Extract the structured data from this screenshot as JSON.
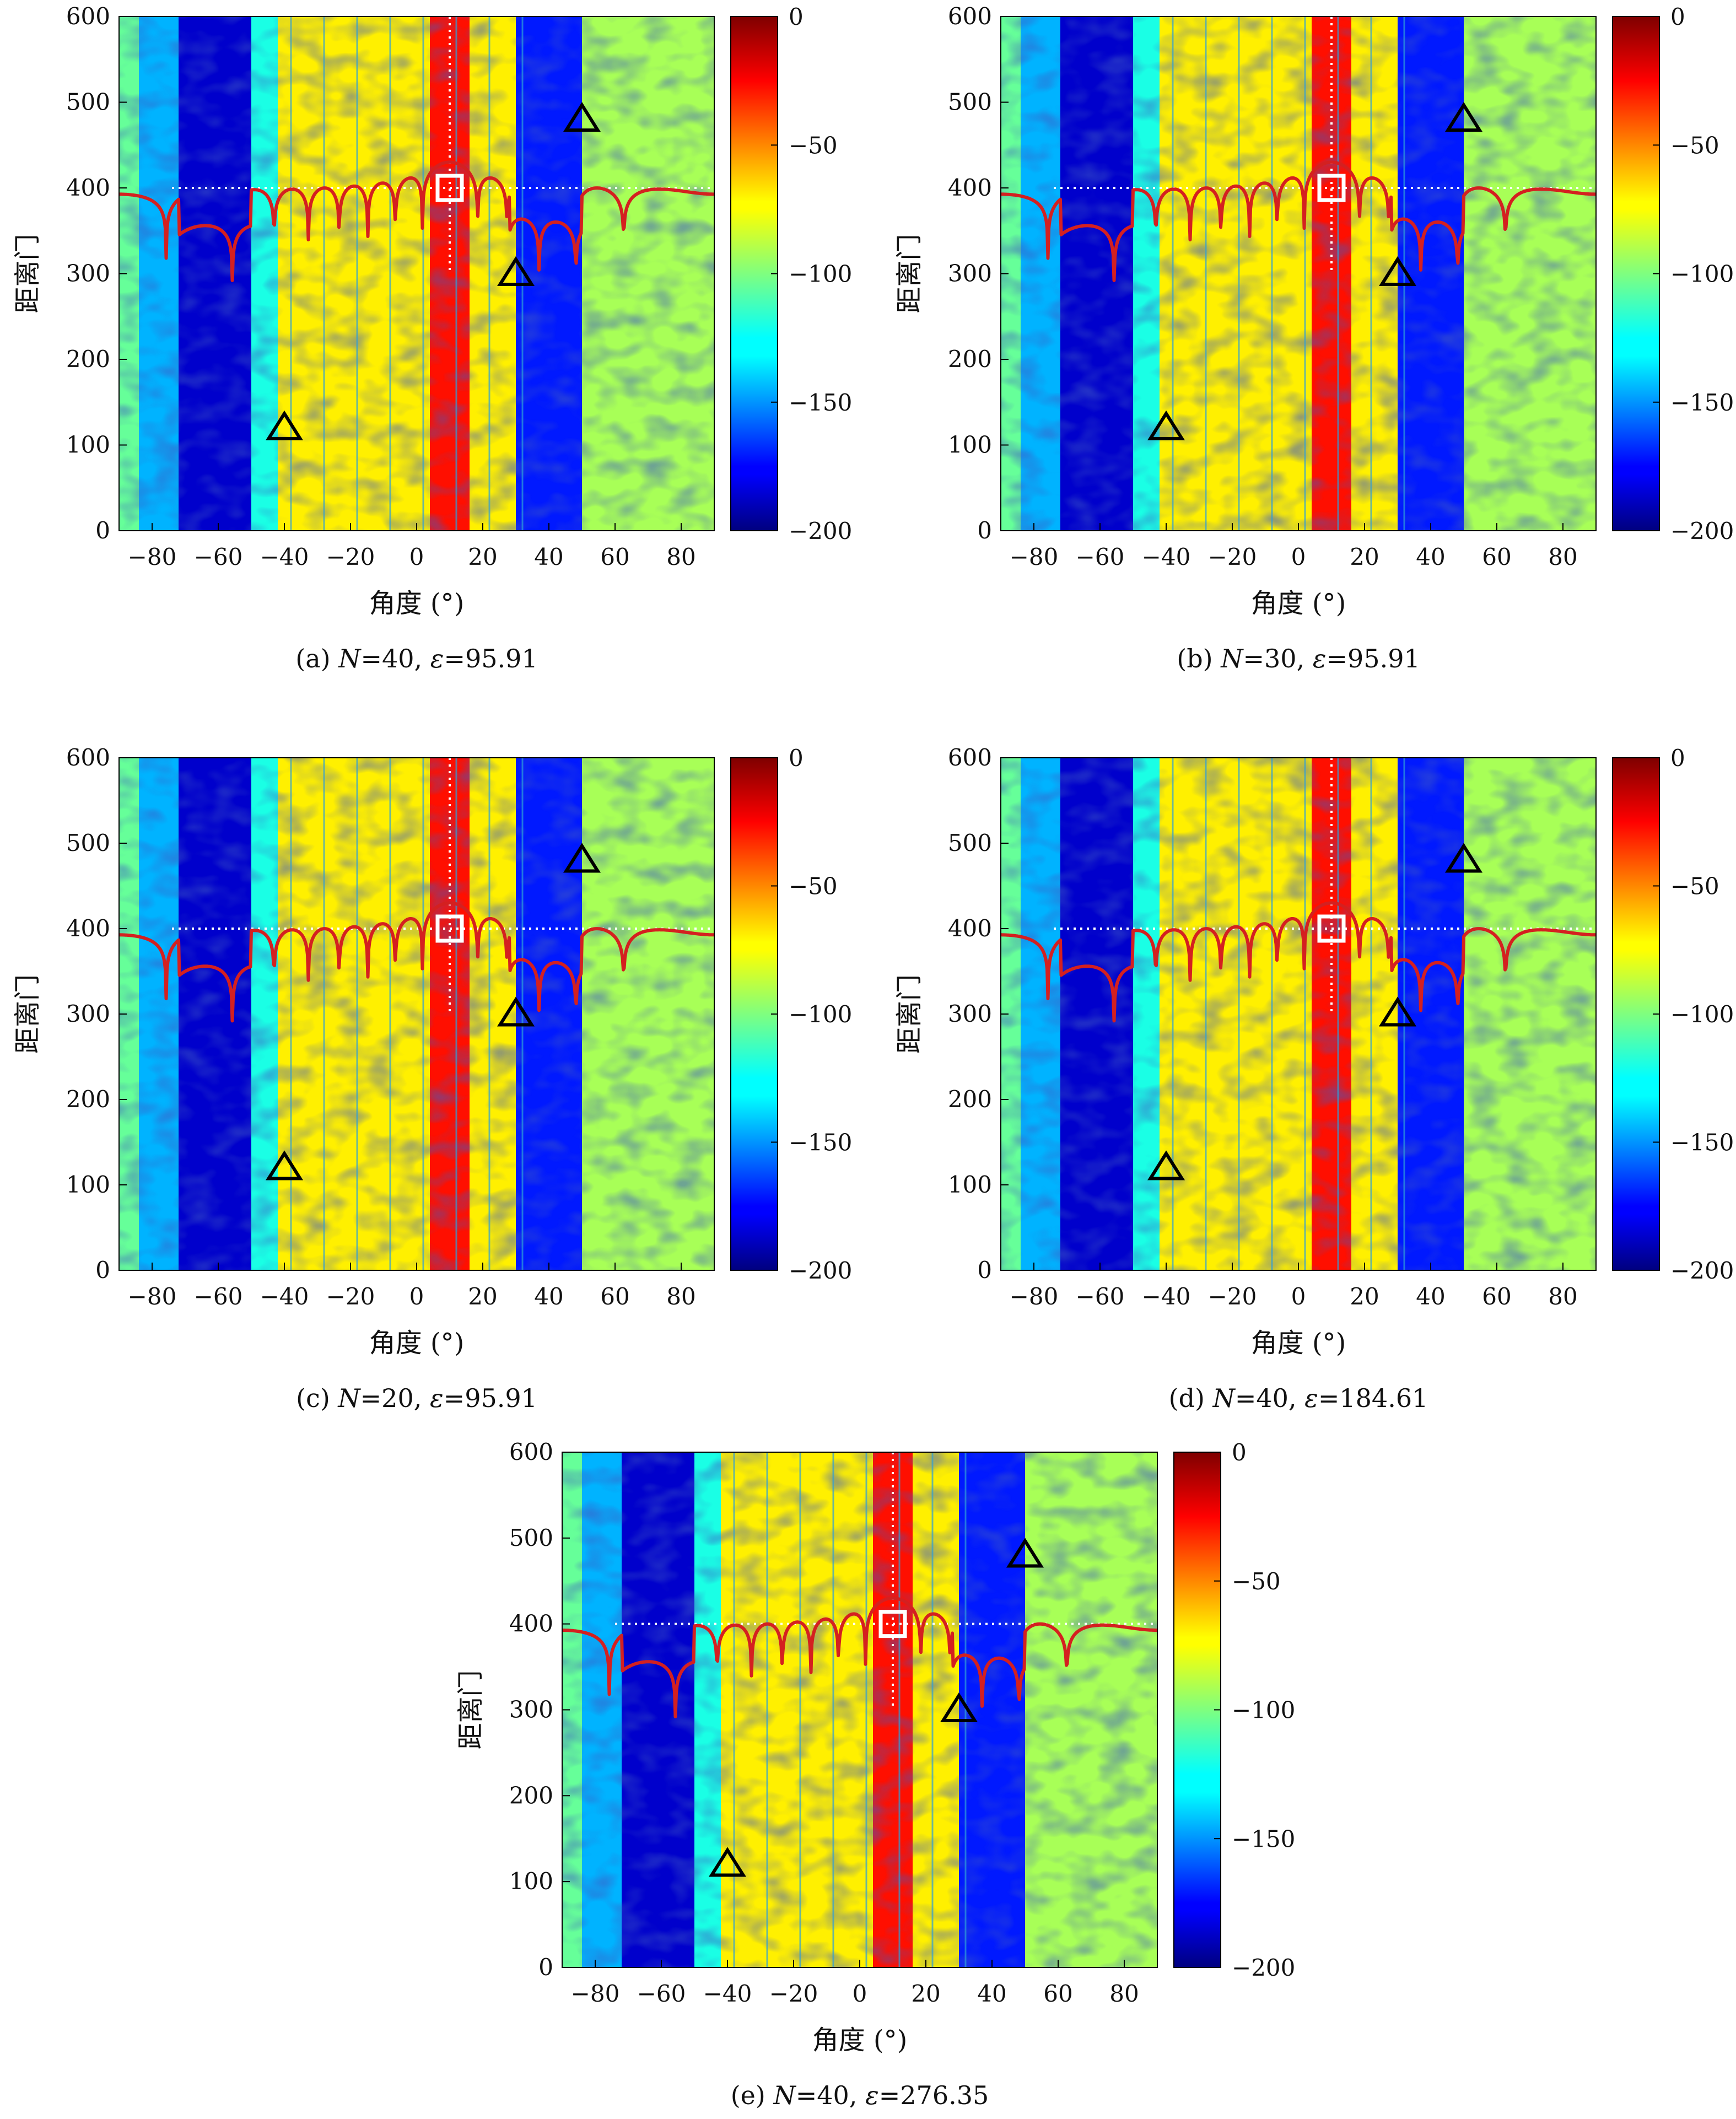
{
  "figure_labels": {
    "xlabel": "角度 (°)",
    "ylabel": "距离门"
  },
  "chart_data": [
    {
      "type": "heatmap",
      "caption": {
        "prefix": "(a) ",
        "n_sym": "N",
        "n_val": "=40, ",
        "eps_sym": "ε",
        "eps_val": "=95.91"
      },
      "xlabel": "角度 (°)",
      "ylabel": "距离门",
      "xlim": [
        -90,
        90
      ],
      "ylim": [
        0,
        600
      ],
      "xticks": [
        -80,
        -60,
        -40,
        -20,
        0,
        20,
        40,
        60,
        80
      ],
      "yticks": [
        0,
        100,
        200,
        300,
        400,
        500,
        600
      ],
      "colorbar": {
        "range": [
          -200,
          0
        ],
        "ticks": [
          0,
          -50,
          -100,
          -150,
          -200
        ],
        "tick_labels": [
          "0",
          "−50",
          "−100",
          "−150",
          "−200"
        ],
        "colormap": "jet"
      },
      "target": {
        "angle": 10,
        "range": 400
      },
      "jammer_markers": [
        {
          "angle": -40,
          "range": 120
        },
        {
          "angle": 30,
          "range": 300
        },
        {
          "angle": 50,
          "range": 480
        }
      ],
      "notch_region": [
        -70,
        -50
      ],
      "notch_region_2": [
        30,
        50
      ],
      "pattern_overlay": true
    },
    {
      "type": "heatmap",
      "caption": {
        "prefix": "(b) ",
        "n_sym": "N",
        "n_val": "=30, ",
        "eps_sym": "ε",
        "eps_val": "=95.91"
      },
      "xlabel": "角度 (°)",
      "ylabel": "距离门",
      "xlim": [
        -90,
        90
      ],
      "ylim": [
        0,
        600
      ],
      "xticks": [
        -80,
        -60,
        -40,
        -20,
        0,
        20,
        40,
        60,
        80
      ],
      "yticks": [
        0,
        100,
        200,
        300,
        400,
        500,
        600
      ],
      "colorbar": {
        "range": [
          -200,
          0
        ],
        "ticks": [
          0,
          -50,
          -100,
          -150,
          -200
        ],
        "tick_labels": [
          "0",
          "−50",
          "−100",
          "−150",
          "−200"
        ],
        "colormap": "jet"
      },
      "target": {
        "angle": 10,
        "range": 400
      },
      "jammer_markers": [
        {
          "angle": -40,
          "range": 120
        },
        {
          "angle": 30,
          "range": 300
        },
        {
          "angle": 50,
          "range": 480
        }
      ],
      "notch_region": [
        -70,
        -50
      ],
      "notch_region_2": [
        30,
        50
      ],
      "pattern_overlay": true
    },
    {
      "type": "heatmap",
      "caption": {
        "prefix": "(c) ",
        "n_sym": "N",
        "n_val": "=20, ",
        "eps_sym": "ε",
        "eps_val": "=95.91"
      },
      "xlabel": "角度 (°)",
      "ylabel": "距离门",
      "xlim": [
        -90,
        90
      ],
      "ylim": [
        0,
        600
      ],
      "xticks": [
        -80,
        -60,
        -40,
        -20,
        0,
        20,
        40,
        60,
        80
      ],
      "yticks": [
        0,
        100,
        200,
        300,
        400,
        500,
        600
      ],
      "colorbar": {
        "range": [
          -200,
          0
        ],
        "ticks": [
          0,
          -50,
          -100,
          -150,
          -200
        ],
        "tick_labels": [
          "0",
          "−50",
          "−100",
          "−150",
          "−200"
        ],
        "colormap": "jet"
      },
      "target": {
        "angle": 10,
        "range": 400
      },
      "jammer_markers": [
        {
          "angle": -40,
          "range": 120
        },
        {
          "angle": 30,
          "range": 300
        },
        {
          "angle": 50,
          "range": 480
        }
      ],
      "notch_region": [
        -70,
        -50
      ],
      "notch_region_2": [
        30,
        50
      ],
      "pattern_overlay": true
    },
    {
      "type": "heatmap",
      "caption": {
        "prefix": "(d) ",
        "n_sym": "N",
        "n_val": "=40, ",
        "eps_sym": "ε",
        "eps_val": "=184.61"
      },
      "xlabel": "角度 (°)",
      "ylabel": "距离门",
      "xlim": [
        -90,
        90
      ],
      "ylim": [
        0,
        600
      ],
      "xticks": [
        -80,
        -60,
        -40,
        -20,
        0,
        20,
        40,
        60,
        80
      ],
      "yticks": [
        0,
        100,
        200,
        300,
        400,
        500,
        600
      ],
      "colorbar": {
        "range": [
          -200,
          0
        ],
        "ticks": [
          0,
          -50,
          -100,
          -150,
          -200
        ],
        "tick_labels": [
          "0",
          "−50",
          "−100",
          "−150",
          "−200"
        ],
        "colormap": "jet"
      },
      "target": {
        "angle": 10,
        "range": 400
      },
      "jammer_markers": [
        {
          "angle": -40,
          "range": 120
        },
        {
          "angle": 30,
          "range": 300
        },
        {
          "angle": 50,
          "range": 480
        }
      ],
      "notch_region": [
        -70,
        -50
      ],
      "notch_region_2": [
        30,
        50
      ],
      "pattern_overlay": true
    },
    {
      "type": "heatmap",
      "caption": {
        "prefix": "(e) ",
        "n_sym": "N",
        "n_val": "=40, ",
        "eps_sym": "ε",
        "eps_val": "=276.35"
      },
      "xlabel": "角度 (°)",
      "ylabel": "距离门",
      "xlim": [
        -90,
        90
      ],
      "ylim": [
        0,
        600
      ],
      "xticks": [
        -80,
        -60,
        -40,
        -20,
        0,
        20,
        40,
        60,
        80
      ],
      "yticks": [
        0,
        100,
        200,
        300,
        400,
        500,
        600
      ],
      "colorbar": {
        "range": [
          -200,
          0
        ],
        "ticks": [
          0,
          -50,
          -100,
          -150,
          -200
        ],
        "tick_labels": [
          "0",
          "−50",
          "−100",
          "−150",
          "−200"
        ],
        "colormap": "jet"
      },
      "target": {
        "angle": 10,
        "range": 400
      },
      "jammer_markers": [
        {
          "angle": -40,
          "range": 120
        },
        {
          "angle": 30,
          "range": 300
        },
        {
          "angle": 50,
          "range": 480
        }
      ],
      "notch_region": [
        -70,
        -50
      ],
      "notch_region_2": [
        30,
        50
      ],
      "pattern_overlay": true
    }
  ],
  "colors": {
    "pattern_line": "#d42020",
    "target_box": "#ffffff",
    "guide_line": "#ffffff",
    "marker_stroke": "#000000"
  }
}
